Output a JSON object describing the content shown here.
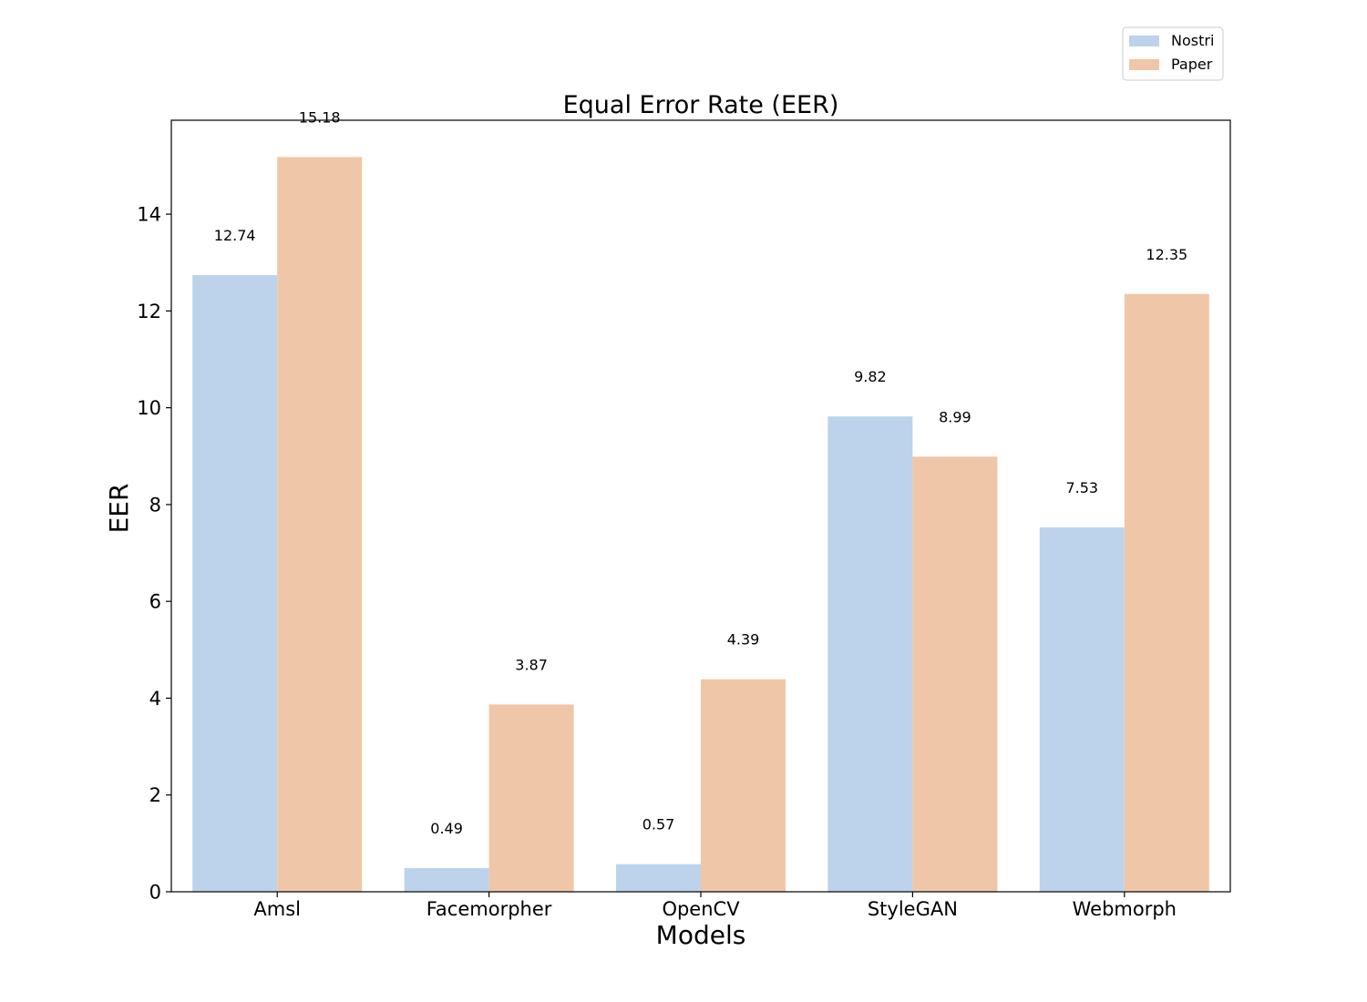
{
  "chart_data": {
    "type": "bar",
    "title": "Equal Error Rate (EER)",
    "xlabel": "Models",
    "ylabel": "EER",
    "categories": [
      "Amsl",
      "Facemorpher",
      "OpenCV",
      "StyleGAN",
      "Webmorph"
    ],
    "series": [
      {
        "name": "Nostri",
        "values": [
          12.74,
          0.49,
          0.57,
          9.82,
          7.53
        ],
        "color": "#bdd3ec"
      },
      {
        "name": "Paper",
        "values": [
          15.18,
          3.87,
          4.39,
          8.99,
          12.35
        ],
        "color": "#f0c6a9"
      }
    ],
    "data_labels": [
      [
        "12.74",
        "0.49",
        "0.57",
        "9.82",
        "7.53"
      ],
      [
        "15.18",
        "3.87",
        "4.39",
        "8.99",
        "12.35"
      ]
    ],
    "yticks": [
      0,
      2,
      4,
      6,
      8,
      10,
      12,
      14
    ],
    "ylim": [
      0,
      15.94
    ],
    "grid": false,
    "legend_position": "top-right"
  }
}
